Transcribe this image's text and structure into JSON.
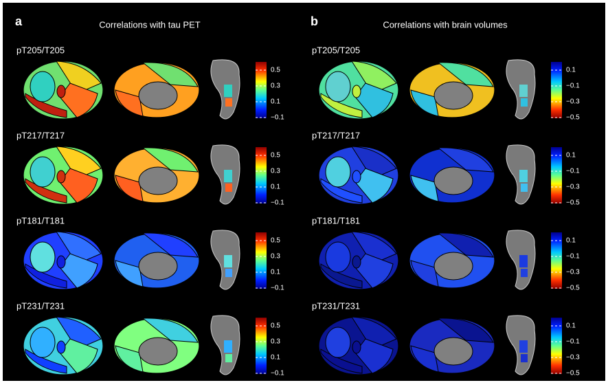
{
  "panels": [
    {
      "label": "a",
      "title": "Correlations with tau PET",
      "rows": [
        "pT205/T205",
        "pT217/T217",
        "pT181/T181",
        "pT231/T231"
      ],
      "colorbar_ticks": [
        "0.5",
        "0.3",
        "0.1",
        "−0.1"
      ]
    },
    {
      "label": "b",
      "title": "Correlations with brain volumes",
      "rows": [
        "pT205/T205",
        "pT217/T217",
        "pT181/T181",
        "pT231/T231"
      ],
      "colorbar_ticks": [
        "0.1",
        "−0.1",
        "−0.3",
        "−0.5"
      ]
    }
  ]
}
